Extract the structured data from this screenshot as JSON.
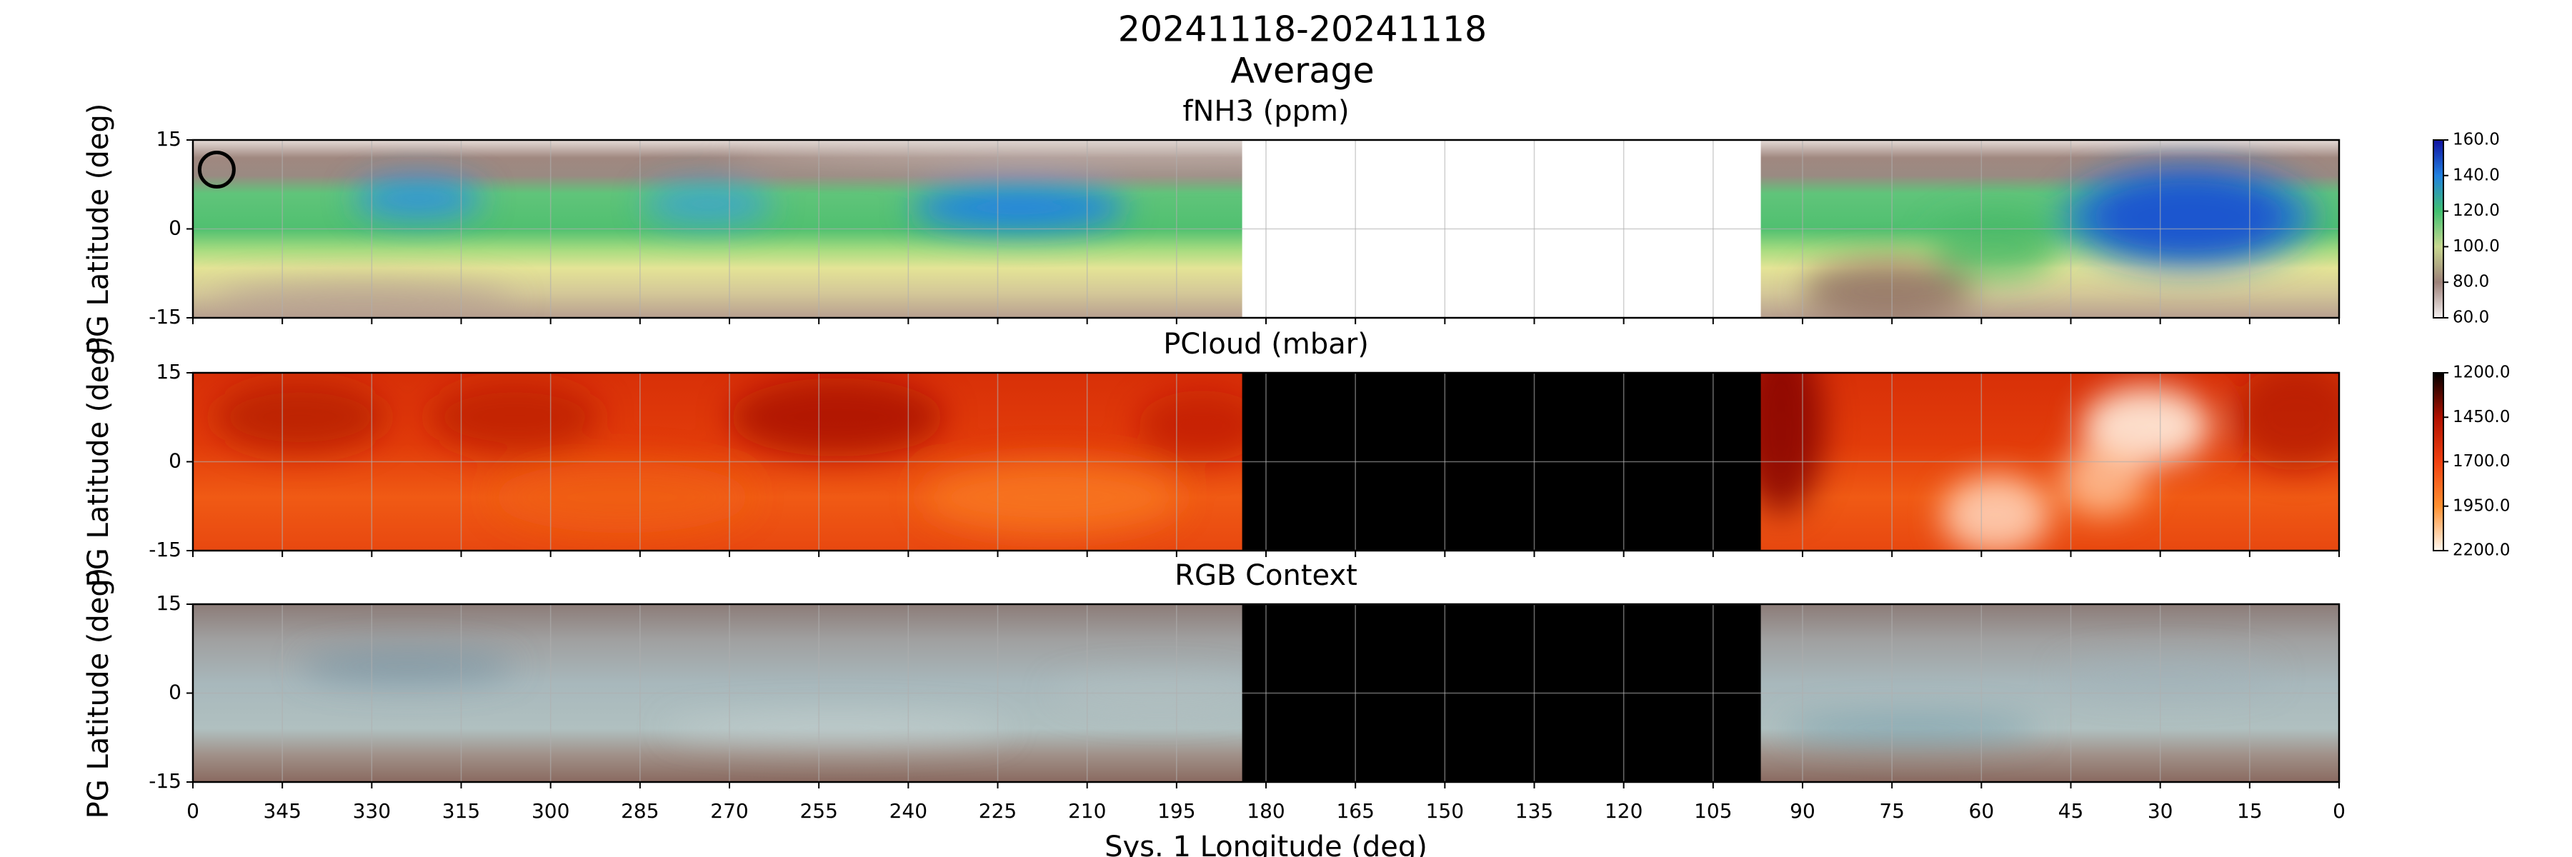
{
  "figure": {
    "title": "20241118-20241118",
    "subtitle": "Average"
  },
  "chart_data": [
    {
      "type": "heatmap",
      "title": "fNH3 (ppm)",
      "ylabel": "PG Latitude (deg)",
      "xlim": [
        360,
        0
      ],
      "ylim": [
        -15,
        15
      ],
      "yticks": [
        -15,
        0,
        15
      ],
      "grid": true,
      "no_data_lon": [
        184,
        97
      ],
      "nan_color": "#ffffff",
      "marker": {
        "lon": 356,
        "lat": 10
      },
      "colorbar": {
        "lim": [
          60,
          160
        ],
        "colors": [
          "#f4f0f0",
          "#9c8078",
          "#c8d890",
          "#40c070",
          "#2080e0",
          "#1010a0"
        ],
        "ticks": [
          {
            "value": 60,
            "label": "60.0"
          },
          {
            "value": 80,
            "label": "80.0"
          },
          {
            "value": 100,
            "label": "100.0"
          },
          {
            "value": 120,
            "label": "120.0"
          },
          {
            "value": 140,
            "label": "140.0"
          },
          {
            "value": 160,
            "label": "160.0"
          }
        ]
      }
    },
    {
      "type": "heatmap",
      "title": "PCloud (mbar)",
      "ylabel": "PG Latitude (deg)",
      "xlim": [
        360,
        0
      ],
      "ylim": [
        -15,
        15
      ],
      "yticks": [
        -15,
        0,
        15
      ],
      "grid": true,
      "no_data_lon": [
        184,
        97
      ],
      "nan_color": "#000000",
      "colorbar": {
        "lim": [
          2200,
          1200
        ],
        "colors": [
          "#fff8f0",
          "#ff9030",
          "#f04010",
          "#b01000",
          "#000000"
        ],
        "ticks": [
          {
            "value": 2200,
            "label": "2200.0"
          },
          {
            "value": 1950,
            "label": "1950.0"
          },
          {
            "value": 1700,
            "label": "1700.0"
          },
          {
            "value": 1450,
            "label": "1450.0"
          },
          {
            "value": 1200,
            "label": "1200.0"
          }
        ]
      }
    },
    {
      "type": "heatmap",
      "title": "RGB Context",
      "ylabel": "PG Latitude (deg)",
      "xlabel": "Sys. 1 Longitude (deg)",
      "xlim": [
        360,
        0
      ],
      "ylim": [
        -15,
        15
      ],
      "yticks": [
        -15,
        0,
        15
      ],
      "grid": true,
      "no_data_lon": [
        184,
        97
      ],
      "nan_color": "#000000",
      "xticks": [
        {
          "value": 360,
          "label": "0"
        },
        345,
        330,
        315,
        300,
        285,
        270,
        255,
        240,
        225,
        210,
        195,
        180,
        165,
        150,
        135,
        120,
        105,
        90,
        75,
        60,
        45,
        30,
        15,
        0
      ]
    }
  ]
}
